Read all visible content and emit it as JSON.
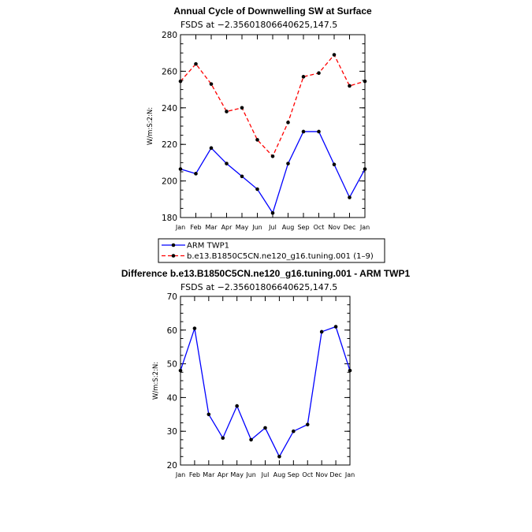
{
  "chart_data": [
    {
      "type": "line",
      "title": "Annual Cycle of Downwelling SW at Surface",
      "subtitle": "FSDS at −2.35601806640625,147.5",
      "ylabel": "W/m:S:2:N:",
      "ylim": [
        180,
        280
      ],
      "yticks": [
        180,
        200,
        220,
        240,
        260,
        280
      ],
      "categories": [
        "Jan",
        "Feb",
        "Mar",
        "Apr",
        "May",
        "Jun",
        "Jul",
        "Aug",
        "Sep",
        "Oct",
        "Nov",
        "Dec",
        "Jan"
      ],
      "series": [
        {
          "name": "ARM TWP1",
          "color": "#0000ff",
          "dash": "solid",
          "values": [
            206.5,
            204,
            218,
            209.5,
            202.5,
            195.5,
            182.5,
            209.5,
            227,
            227,
            209,
            191,
            206.5
          ]
        },
        {
          "name": "b.e13.B1850C5CN.ne120_g16.tuning.001 (1–9)",
          "color": "#ff0000",
          "dash": "dashed",
          "values": [
            254.5,
            264,
            253,
            238,
            240,
            222.5,
            213.5,
            232,
            257,
            259,
            269,
            252,
            254.5
          ]
        }
      ],
      "grid": false,
      "legend_placement": "below"
    },
    {
      "type": "line",
      "title": "Difference b.e13.B1850C5CN.ne120_g16.tuning.001 - ARM TWP1",
      "subtitle": "FSDS at −2.35601806640625,147.5",
      "ylabel": "W/m:S:2:N:",
      "ylim": [
        20,
        70
      ],
      "yticks": [
        20,
        30,
        40,
        50,
        60,
        70
      ],
      "categories": [
        "Jan",
        "Feb",
        "Mar",
        "Apr",
        "May",
        "Jun",
        "Jul",
        "Aug",
        "Sep",
        "Oct",
        "Nov",
        "Dec",
        "Jan"
      ],
      "series": [
        {
          "color": "#0000ff",
          "dash": "solid",
          "values": [
            48,
            60.5,
            35,
            28,
            37.5,
            27.5,
            31,
            22.5,
            30,
            32,
            59.5,
            61,
            48
          ]
        }
      ],
      "grid": false
    }
  ]
}
